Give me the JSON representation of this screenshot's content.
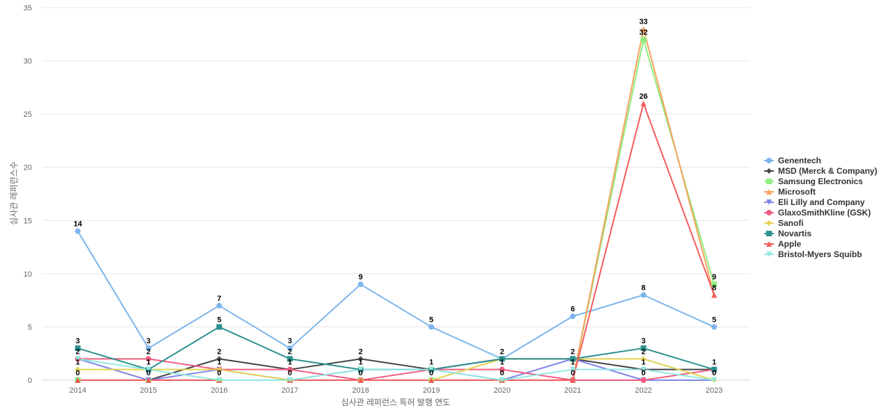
{
  "chart_data": {
    "type": "line",
    "title": "",
    "xlabel": "심사관 레퍼런스 특허 발행 연도",
    "ylabel": "심사관 레퍼런스수",
    "categories": [
      "2014",
      "2015",
      "2016",
      "2017",
      "2018",
      "2019",
      "2020",
      "2021",
      "2022",
      "2023"
    ],
    "ylim": [
      0,
      35
    ],
    "yticks": [
      0,
      5,
      10,
      15,
      20,
      25,
      30,
      35
    ],
    "grid": true,
    "legend_position": "right",
    "series": [
      {
        "name": "Genentech",
        "color": "#7cb5ec",
        "marker": "circle",
        "values": [
          14,
          3,
          7,
          3,
          9,
          5,
          2,
          6,
          8,
          5
        ]
      },
      {
        "name": "MSD (Merck & Company)",
        "color": "#434348",
        "marker": "diamond",
        "values": [
          0,
          0,
          2,
          1,
          2,
          1,
          2,
          2,
          1,
          1
        ]
      },
      {
        "name": "Samsung Electronics",
        "color": "#90ed7d",
        "marker": "square",
        "values": [
          0,
          0,
          0,
          0,
          0,
          0,
          0,
          0,
          32,
          9
        ]
      },
      {
        "name": "Microsoft",
        "color": "#f7a35c",
        "marker": "triangle",
        "values": [
          0,
          0,
          0,
          0,
          0,
          0,
          0,
          0,
          33,
          8
        ]
      },
      {
        "name": "Eli Lilly and Company",
        "color": "#8085e9",
        "marker": "triangle-down",
        "values": [
          2,
          0,
          1,
          0,
          1,
          1,
          0,
          2,
          0,
          0
        ]
      },
      {
        "name": "GlaxoSmithKline (GSK)",
        "color": "#f15c80",
        "marker": "circle",
        "values": [
          2,
          2,
          1,
          1,
          0,
          1,
          1,
          0,
          0,
          1
        ]
      },
      {
        "name": "Sanofi",
        "color": "#e4d354",
        "marker": "diamond",
        "values": [
          1,
          1,
          1,
          0,
          0,
          0,
          2,
          2,
          2,
          0
        ]
      },
      {
        "name": "Novartis",
        "color": "#2b908f",
        "marker": "square",
        "values": [
          3,
          1,
          5,
          2,
          1,
          1,
          2,
          2,
          3,
          1
        ]
      },
      {
        "name": "Apple",
        "color": "#f45b5b",
        "marker": "triangle",
        "values": [
          0,
          0,
          0,
          0,
          0,
          0,
          0,
          0,
          26,
          8
        ]
      },
      {
        "name": "Bristol-Myers Squibb",
        "color": "#91e8e1",
        "marker": "triangle-down",
        "values": [
          2,
          1,
          0,
          0,
          1,
          1,
          0,
          1,
          1,
          0
        ]
      }
    ],
    "data_labels": [
      {
        "x": "2014",
        "values": [
          "14",
          "3",
          "2",
          "1",
          "0"
        ]
      },
      {
        "x": "2015",
        "values": [
          "3",
          "2",
          "1",
          "0"
        ]
      },
      {
        "x": "2016",
        "values": [
          "7",
          "5",
          "2",
          "1",
          "0"
        ]
      },
      {
        "x": "2017",
        "values": [
          "3",
          "2",
          "1",
          "0"
        ]
      },
      {
        "x": "2018",
        "values": [
          "9",
          "2",
          "1",
          "0"
        ]
      },
      {
        "x": "2019",
        "values": [
          "5",
          "1",
          "0"
        ]
      },
      {
        "x": "2020",
        "values": [
          "2",
          "1",
          "0"
        ]
      },
      {
        "x": "2021",
        "values": [
          "6",
          "2",
          "1",
          "0"
        ]
      },
      {
        "x": "2022",
        "values": [
          "33",
          "32",
          "26",
          "8",
          "3",
          "2",
          "1",
          "0"
        ]
      },
      {
        "x": "2023",
        "values": [
          "9",
          "8",
          "5",
          "1",
          "0"
        ]
      }
    ]
  }
}
